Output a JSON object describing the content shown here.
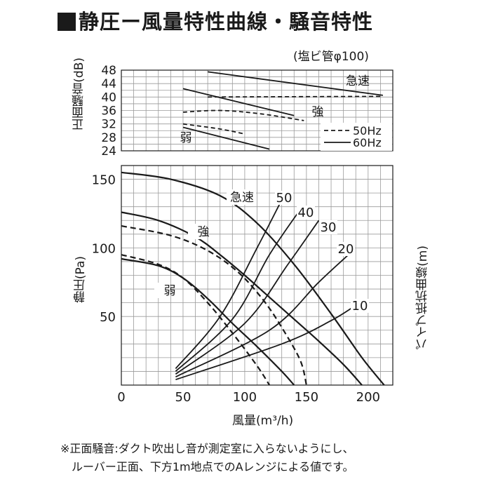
{
  "title": "静圧ー風量特性曲線・騒音特性",
  "pipe_note": "(塩ビ管φ100)",
  "footnote": [
    "※正面騒音:ダクト吹出し音が測定室に入らないようにし、",
    "ルーバー正面、下方1m地点でのAレンジによる値です。"
  ],
  "chart_data": [
    {
      "type": "line",
      "ylabel": "正面騒音(dB)",
      "ylim": [
        24,
        48
      ],
      "yticks": [
        24,
        28,
        32,
        36,
        40,
        44,
        48
      ],
      "xlim": [
        0,
        220
      ],
      "grid": true,
      "legend": {
        "placement": "bottom-right",
        "entries": [
          {
            "label": "50Hz",
            "style": "dashed"
          },
          {
            "label": "60Hz",
            "style": "solid"
          }
        ]
      },
      "annotations": [
        "急速",
        "強",
        "弱"
      ],
      "series": [
        {
          "mode": "急速",
          "freq": "60Hz",
          "x": [
            70,
            212
          ],
          "y": [
            47.5,
            40.5
          ]
        },
        {
          "mode": "急速",
          "freq": "50Hz",
          "x": [
            70,
            212
          ],
          "y": [
            40.0,
            40.2
          ]
        },
        {
          "mode": "強",
          "freq": "60Hz",
          "x": [
            50,
            140
          ],
          "y": [
            42.5,
            34.5
          ]
        },
        {
          "mode": "強",
          "freq": "50Hz",
          "x": [
            50,
            80,
            113,
            148
          ],
          "y": [
            35.5,
            36.0,
            35.0,
            33.0
          ]
        },
        {
          "mode": "弱",
          "freq": "60Hz",
          "x": [
            50,
            120
          ],
          "y": [
            31.0,
            24.5
          ]
        },
        {
          "mode": "弱",
          "freq": "50Hz",
          "x": [
            50,
            80,
            100
          ],
          "y": [
            32.0,
            30.5,
            29.0
          ]
        }
      ]
    },
    {
      "type": "line",
      "xlabel": "風量(m³/h)",
      "ylabel": "静圧(Pa)",
      "y2label": "パイプ抵抗曲線(m)",
      "xlim": [
        0,
        220
      ],
      "ylim": [
        0,
        160
      ],
      "xticks": [
        0,
        50,
        100,
        150,
        200
      ],
      "yticks": [
        50,
        100,
        150
      ],
      "grid": true,
      "annotations": [
        "急速",
        "強",
        "弱"
      ],
      "series": [
        {
          "mode": "急速",
          "freq": "60Hz",
          "x": [
            0,
            40,
            80,
            110,
            140,
            170,
            195,
            213
          ],
          "y": [
            155,
            150,
            138,
            118,
            88,
            52,
            20,
            0
          ]
        },
        {
          "mode": "強",
          "freq": "60Hz",
          "x": [
            0,
            30,
            60,
            80,
            100,
            120,
            140,
            160,
            180,
            195
          ],
          "y": [
            126,
            120,
            108,
            95,
            80,
            64,
            48,
            32,
            15,
            0
          ]
        },
        {
          "mode": "強",
          "freq": "50Hz",
          "x": [
            0,
            40,
            70,
            95,
            115,
            130,
            145,
            150
          ],
          "y": [
            116,
            109,
            98,
            82,
            62,
            42,
            18,
            0
          ]
        },
        {
          "mode": "弱",
          "freq": "60Hz",
          "x": [
            0,
            30,
            50,
            70,
            90,
            110,
            130,
            140
          ],
          "y": [
            92,
            87,
            78,
            63,
            45,
            28,
            10,
            0
          ]
        },
        {
          "mode": "弱",
          "freq": "50Hz",
          "x": [
            0,
            30,
            50,
            70,
            90,
            110,
            120
          ],
          "y": [
            95,
            88,
            78,
            60,
            38,
            14,
            0
          ]
        }
      ],
      "pipe_resistance_curves": [
        {
          "label": "50",
          "x": [
            44,
            80,
            110,
            130
          ],
          "y": [
            12,
            50,
            100,
            135
          ]
        },
        {
          "label": "40",
          "x": [
            44,
            90,
            120,
            145
          ],
          "y": [
            10,
            48,
            95,
            128
          ]
        },
        {
          "label": "30",
          "x": [
            44,
            100,
            135,
            160
          ],
          "y": [
            8,
            45,
            88,
            120
          ]
        },
        {
          "label": "20",
          "x": [
            44,
            120,
            160,
            184
          ],
          "y": [
            6,
            40,
            75,
            95
          ]
        },
        {
          "label": "10",
          "x": [
            44,
            130,
            170,
            193
          ],
          "y": [
            4,
            30,
            47,
            60
          ]
        }
      ]
    }
  ]
}
